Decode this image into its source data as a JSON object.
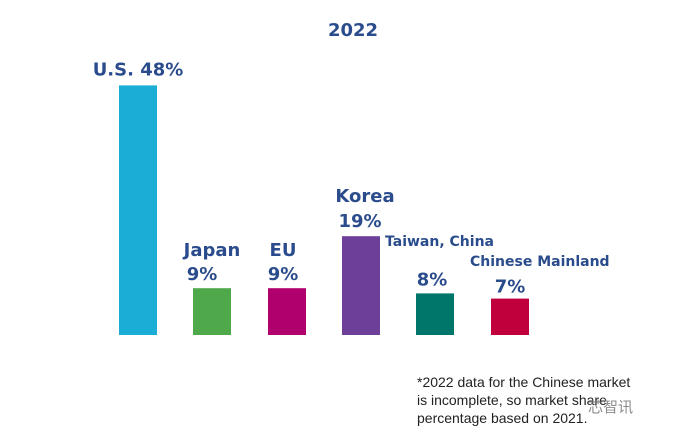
{
  "chart_data": {
    "type": "bar",
    "title": "2022",
    "categories": [
      "U.S.",
      "Japan",
      "EU",
      "Korea",
      "Taiwan, China",
      "Chinese Mainland"
    ],
    "values": [
      48,
      9,
      9,
      19,
      8,
      7
    ],
    "value_labels": [
      "48%",
      "9%",
      "9%",
      "19%",
      "8%",
      "7%"
    ],
    "combined_labels": [
      "U.S. 48%"
    ],
    "colors": [
      "#1aaed6",
      "#4fa84a",
      "#b0006e",
      "#6e3f99",
      "#00766b",
      "#c0003c"
    ],
    "xlabel": "",
    "ylabel": "",
    "ylim": [
      0,
      50
    ],
    "grid": false,
    "legend": "none"
  },
  "footnote": {
    "lines": [
      "*2022 data for the Chinese market",
      "is incomplete, so market share",
      "percentage based on 2021."
    ]
  },
  "watermark": "芯智讯"
}
